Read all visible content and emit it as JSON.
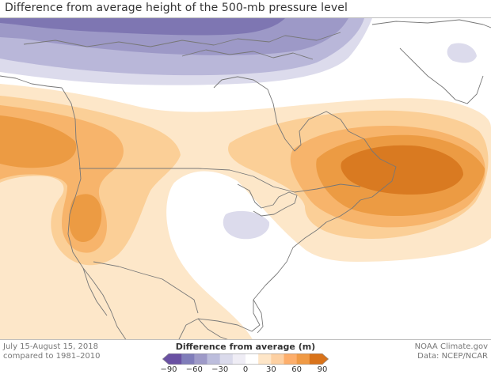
{
  "title": "Difference from average height of the 500-mb pressure level",
  "footer": {
    "period": "July 15-August 15, 2018",
    "baseline": "compared to 1981–2010",
    "credit": "NOAA Climate.gov",
    "data_source": "Data: NCEP/NCAR"
  },
  "legend": {
    "title": "Difference from average (m)",
    "ticks": [
      "−90",
      "−60",
      "−30",
      "0",
      "30",
      "60",
      "90"
    ],
    "bins": [
      {
        "range": [
          -90,
          -75
        ],
        "color": "#6a51a3"
      },
      {
        "range": [
          -75,
          -60
        ],
        "color": "#807dba"
      },
      {
        "range": [
          -60,
          -45
        ],
        "color": "#9e9ac8"
      },
      {
        "range": [
          -45,
          -30
        ],
        "color": "#bcbddc"
      },
      {
        "range": [
          -30,
          -15
        ],
        "color": "#dadaeb"
      },
      {
        "range": [
          -15,
          0
        ],
        "color": "#efedf5"
      },
      {
        "range": [
          0,
          15
        ],
        "color": "#ffffff"
      },
      {
        "range": [
          15,
          30
        ],
        "color": "#fee6c8"
      },
      {
        "range": [
          30,
          45
        ],
        "color": "#fdd0a2"
      },
      {
        "range": [
          45,
          60
        ],
        "color": "#fdae6b"
      },
      {
        "range": [
          60,
          75
        ],
        "color": "#f09a45"
      },
      {
        "range": [
          75,
          90
        ],
        "color": "#d9731a"
      }
    ]
  },
  "colors": {
    "coastline": "#777777",
    "purple_1": "#dcdbec",
    "purple_2": "#b9b7d9",
    "purple_3": "#9d99c7",
    "purple_4": "#7e76b2",
    "orange_1": "#fde7c9",
    "orange_2": "#fbcf97",
    "orange_3": "#f7b46b",
    "orange_4": "#ec9b43",
    "orange_5": "#d97a21"
  }
}
